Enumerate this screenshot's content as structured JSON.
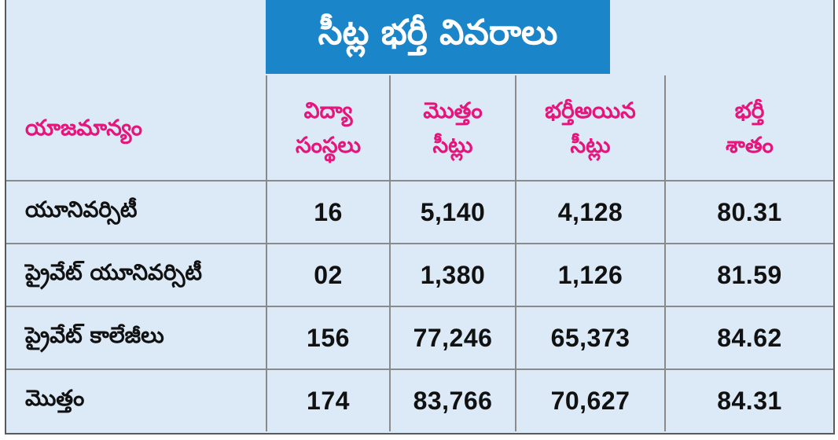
{
  "title": "సీట్ల భర్తీ వివరాలు",
  "columns": [
    "యాజమాన్యం",
    "విద్యా\nసంస్థలు",
    "మొత్తం\nసీట్లు",
    "భర్తీఅయిన\nసీట్లు",
    "భర్తీ\nశాతం"
  ],
  "rows": [
    {
      "name": "యూనివర్సిటీ",
      "institutions": "16",
      "total_seats": "5,140",
      "filled_seats": "4,128",
      "percent": "80.31"
    },
    {
      "name": "ప్రైవేట్ యూనివర్సిటీ",
      "institutions": "02",
      "total_seats": "1,380",
      "filled_seats": "1,126",
      "percent": "81.59"
    },
    {
      "name": "ప్రైవేట్ కాలేజీలు",
      "institutions": "156",
      "total_seats": "77,246",
      "filled_seats": "65,373",
      "percent": "84.62"
    },
    {
      "name": "మొత్తం",
      "institutions": "174",
      "total_seats": "83,766",
      "filled_seats": "70,627",
      "percent": "84.31"
    }
  ],
  "colors": {
    "background": "#dbeaf6",
    "title_bar": "#1b85c9",
    "header_text": "#e5157b",
    "grid_lines": "#8a8a8a"
  }
}
